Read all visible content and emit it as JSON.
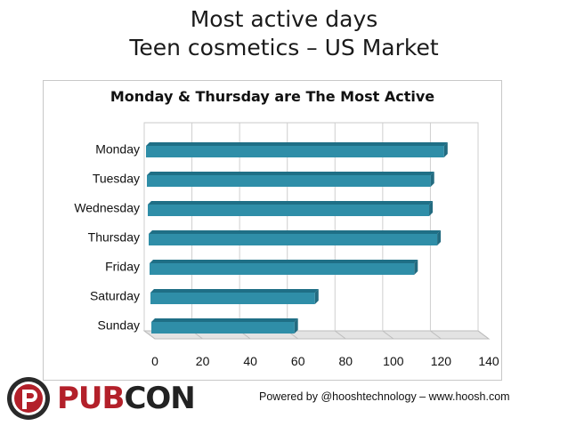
{
  "slide": {
    "title_line1": "Most active days",
    "title_line2": "Teen cosmetics – US Market"
  },
  "chart_data": {
    "type": "bar",
    "orientation": "horizontal",
    "title": "Monday & Thursday are The Most Active",
    "categories": [
      "Monday",
      "Tuesday",
      "Wednesday",
      "Thursday",
      "Friday",
      "Saturday",
      "Sunday"
    ],
    "values": [
      122,
      116,
      115,
      118,
      108,
      66,
      57
    ],
    "xlim": [
      0,
      140
    ],
    "xticks": [
      "0",
      "20",
      "40",
      "60",
      "80",
      "100",
      "120",
      "140"
    ],
    "grid": true,
    "legend": "none",
    "bar_color": "#2f8ea8"
  },
  "footer": {
    "credit": "Powered by @hooshtechnology – www.hoosh.com"
  },
  "logo": {
    "part1": "PUB",
    "part2": "CON",
    "icon": "pubcon-p-icon"
  }
}
